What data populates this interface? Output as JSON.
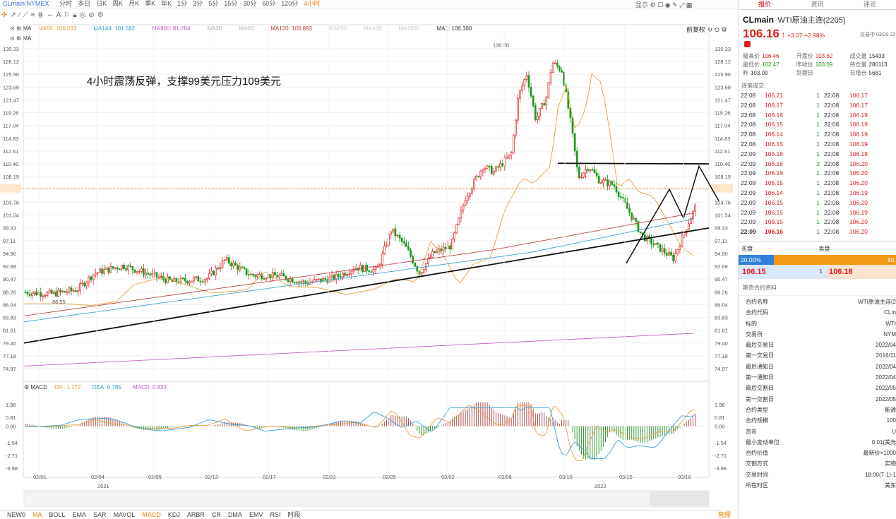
{
  "top": {
    "symbol": "CLmain:NYMEX",
    "periods": [
      "分时",
      "多日",
      "日K",
      "周K",
      "月K",
      "季K",
      "年K",
      "1分",
      "3分",
      "5分",
      "15分",
      "30分",
      "60分",
      "120分",
      "4小时"
    ],
    "active": "4小时",
    "right": [
      "显示"
    ]
  },
  "legend1": {
    "label": "MA",
    "items": [
      {
        "t": "MA55: 106.033",
        "c": "#e8a040"
      },
      {
        "t": "MA144: 101.582",
        "c": "#3aa0d0"
      },
      {
        "t": "MA900: 81.284",
        "c": "#c060c0"
      },
      {
        "t": "MA30",
        "c": "#aaa"
      },
      {
        "t": "MA60",
        "c": "#bbb"
      },
      {
        "t": "MA120: 103.893",
        "c": "#c04040"
      },
      {
        "t": "MA250",
        "c": "#ccc"
      },
      {
        "t": "MA400",
        "c": "#ccc"
      },
      {
        "t": "MA1000",
        "c": "#ccc"
      },
      {
        "t": "MA1: 106.160",
        "c": "#333"
      }
    ],
    "prev": "前复权"
  },
  "legend2": {
    "label": "MA"
  },
  "annotation": "4小时震荡反弹，支撑99美元压力109美元",
  "yticks": [
    "130.33",
    "128.12",
    "125.90",
    "123.69",
    "121.47",
    "119.26",
    "117.04",
    "114.83",
    "112.61",
    "110.40",
    "108.19",
    "106.16",
    "103.76",
    "101.54",
    "99.33",
    "97.11",
    "94.90",
    "92.68",
    "90.47",
    "88.26",
    "86.04",
    "83.83",
    "81.61",
    "79.40",
    "77.18",
    "74.97"
  ],
  "high_label": "130.50",
  "low_label": "86.55",
  "macd": {
    "label": "MACD",
    "dif": "DIF: 1.172",
    "dea": "DEA: 0.785",
    "macd": "MACD: 0.833",
    "yticks": [
      "1.98",
      "0.81",
      "0.00",
      "-1.54",
      "-2.71",
      "-3.88"
    ]
  },
  "xticks": [
    "02/01",
    "02/04",
    "02/09",
    "02/13",
    "02/17",
    "02/22",
    "02/25",
    "03/02",
    "03/06",
    "03/10",
    "03/15",
    "03/18"
  ],
  "years": [
    "2021",
    "2022"
  ],
  "indicators": [
    "NEW0",
    "MA",
    "BOLL",
    "EMA",
    "SAR",
    "MAVOL",
    "MACD",
    "KDJ",
    "ARBR",
    "CR",
    "DMA",
    "EMV",
    "RSI",
    "时段"
  ],
  "indicators_active": [
    "MA",
    "MACD"
  ],
  "manage": "管理",
  "panel": {
    "tabs": [
      "报价",
      "资讯",
      "评论"
    ],
    "code": "CLmain",
    "name": "WTI原油主连(2205)",
    "price": "106.16",
    "arrow": "↑",
    "change": "+3.07",
    "pct": "+2.98%",
    "time": "交易中 03/20 22:09",
    "stats": [
      [
        "最高价",
        "106.46",
        "开盘价",
        "103.62",
        "成交量",
        "15433"
      ],
      [
        "最低价",
        "102.47",
        "昨收价",
        "103.09",
        "持仓量",
        "280113"
      ],
      [
        "昨",
        "103.09",
        "到期日",
        "",
        "日增仓",
        "5681"
      ]
    ],
    "ticks_title": "逐笔成交",
    "ticks": [
      [
        "22:08",
        "106.21",
        "1",
        "22:08",
        "106.17"
      ],
      [
        "22:08",
        "106.17",
        "1",
        "22:08",
        "106.17"
      ],
      [
        "22:08",
        "106.16",
        "1",
        "22:08",
        "106.19"
      ],
      [
        "22:08",
        "106.15",
        "1",
        "22:08",
        "106.19"
      ],
      [
        "22:08",
        "106.14",
        "1",
        "22:08",
        "106.19"
      ],
      [
        "22:08",
        "106.15",
        "1",
        "22:08",
        "106.19"
      ],
      [
        "22:09",
        "106.18",
        "1",
        "22:08",
        "106.18"
      ],
      [
        "22:09",
        "106.16",
        "2",
        "22:08",
        "106.20"
      ],
      [
        "22:09",
        "106.19",
        "1",
        "22:08",
        "106.20"
      ],
      [
        "22:09",
        "106.15",
        "1",
        "22:08",
        "106.20"
      ],
      [
        "22:09",
        "106.14",
        "1",
        "22:08",
        "106.19"
      ],
      [
        "22:09",
        "106.15",
        "1",
        "22:08",
        "106.20"
      ],
      [
        "22:09",
        "106.15",
        "1",
        "22:08",
        "106.19"
      ],
      [
        "22:09",
        "106.15",
        "1",
        "22:08",
        "106.20"
      ],
      [
        "22:09",
        "106.16",
        "1",
        "22:08",
        "106.20"
      ]
    ],
    "buy_label": "买盘",
    "sell_label": "卖盘",
    "buy_pct": "20.00%",
    "sell_pct": "80.",
    "bid": "106.15",
    "bid_vol": "1",
    "ask": "106.18",
    "info_title": "期货合约资料",
    "info": [
      [
        "合约名称",
        "WTI原油主连(2"
      ],
      [
        "合约代码",
        "CLm"
      ],
      [
        "标的",
        "WTI"
      ],
      [
        "交易所",
        "NYM"
      ],
      [
        "最后交易日",
        "2022/04"
      ],
      [
        "第一交易日",
        "2016/11"
      ],
      [
        "最后通知日",
        "2022/04"
      ],
      [
        "第一通知日",
        "2022/04"
      ],
      [
        "最后交割日",
        "2022/05"
      ],
      [
        "第一交割日",
        "2022/05"
      ],
      [
        "合约类型",
        "能源"
      ],
      [
        "合约规模",
        "100"
      ],
      [
        "货币",
        "U"
      ],
      [
        "最小变动单位",
        "0.01(美元"
      ],
      [
        "合约价值",
        "最新价×1000"
      ],
      [
        "交割方式",
        "实物"
      ],
      [
        "交易时间",
        "18:00(T-1)-1"
      ],
      [
        "所在时区",
        "美东"
      ]
    ]
  }
}
